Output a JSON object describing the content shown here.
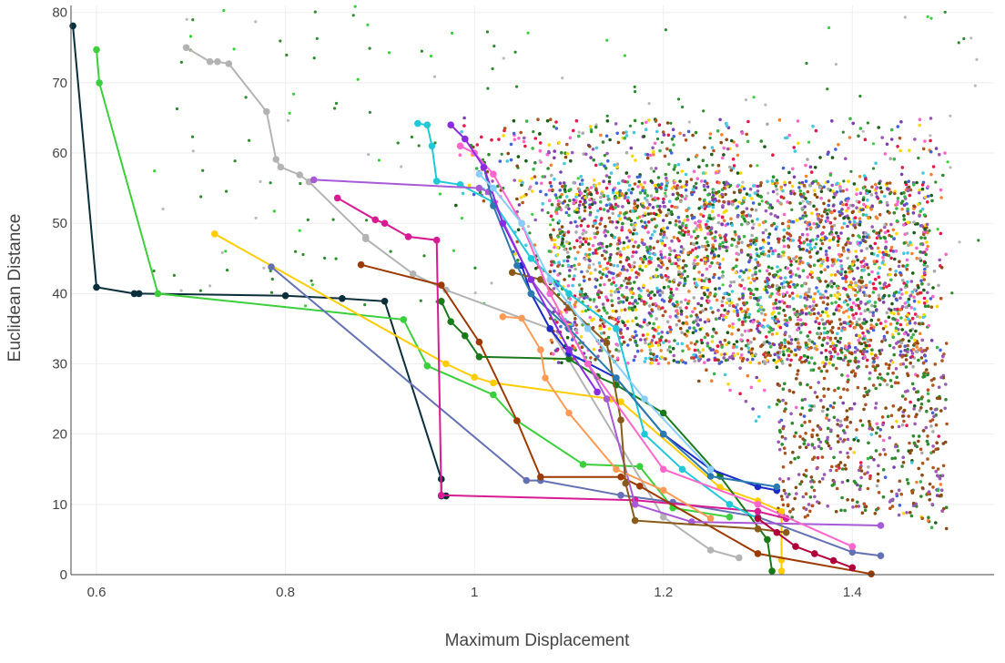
{
  "chart_data": {
    "type": "scatter",
    "title": "",
    "xlabel": "Maximum Displacement",
    "ylabel": "Euclidean Distance",
    "xlim": [
      0.573,
      1.55
    ],
    "ylim": [
      0,
      81
    ],
    "x_ticks": [
      0.6,
      0.8,
      1,
      1.2,
      1.4
    ],
    "x_tick_labels": [
      "0.6",
      "0.8",
      "1",
      "1.2",
      "1.4"
    ],
    "y_ticks": [
      0,
      10,
      20,
      30,
      40,
      50,
      60,
      70,
      80
    ],
    "y_tick_labels": [
      "0",
      "10",
      "20",
      "30",
      "40",
      "50",
      "60",
      "70",
      "80"
    ],
    "grid": true,
    "legend": "none",
    "gridline_color": "#eeeeee",
    "axis_line_color": "#444444",
    "series": [
      {
        "color": "#0b2e3b",
        "x": [
          0.575,
          0.6,
          0.64,
          0.645,
          0.8,
          0.86,
          0.905,
          0.965,
          0.965,
          0.97
        ],
        "y": [
          78.1,
          40.9,
          40.0,
          40.0,
          39.7,
          39.3,
          38.9,
          13.6,
          11.2,
          11.2
        ]
      },
      {
        "color": "#3ccf3c",
        "x": [
          0.6,
          0.603,
          0.665,
          0.925,
          0.95,
          1.02,
          1.045,
          1.115,
          1.175,
          1.21,
          1.27
        ],
        "y": [
          74.7,
          70.0,
          40.0,
          36.3,
          29.7,
          25.6,
          21.9,
          15.7,
          15.4,
          9.5,
          8.2
        ]
      },
      {
        "color": "#b3b3b3",
        "x": [
          0.695,
          0.72,
          0.728,
          0.74,
          0.78,
          0.79,
          0.795,
          0.815,
          0.825,
          0.885,
          0.885,
          0.935,
          0.97,
          1.08,
          1.2,
          1.25,
          1.28
        ],
        "y": [
          75.0,
          73.0,
          73.0,
          72.7,
          65.9,
          59.1,
          58.0,
          56.9,
          55.9,
          48.0,
          47.8,
          42.8,
          40.5,
          35.0,
          8.2,
          3.5,
          2.4
        ]
      },
      {
        "color": "#ffcc00",
        "x": [
          0.725,
          0.97,
          1.0,
          1.02,
          1.145,
          1.155,
          1.26,
          1.3,
          1.325,
          1.325,
          1.325
        ],
        "y": [
          48.5,
          30.0,
          28.1,
          27.3,
          25.0,
          24.6,
          12.4,
          10.5,
          9.0,
          2.1,
          0.5
        ]
      },
      {
        "color": "#6470b4",
        "x": [
          0.785,
          1.055,
          1.07,
          1.155,
          1.21,
          1.3,
          1.4,
          1.43
        ],
        "y": [
          43.8,
          13.4,
          13.4,
          11.3,
          10.3,
          8.2,
          3.2,
          2.7
        ]
      },
      {
        "color": "#d81b93",
        "x": [
          0.855,
          0.895,
          0.905,
          0.93,
          0.96,
          0.965,
          1.17,
          1.3,
          1.33
        ],
        "y": [
          53.6,
          50.5,
          50.0,
          48.1,
          47.6,
          11.3,
          10.6,
          9.0,
          8.0
        ]
      },
      {
        "color": "#9c3a00",
        "x": [
          0.88,
          0.965,
          1.005,
          1.045,
          1.07,
          1.155,
          1.175,
          1.3,
          1.42
        ],
        "y": [
          44.1,
          41.2,
          33.1,
          21.9,
          13.9,
          13.9,
          12.6,
          3.0,
          0.1
        ]
      },
      {
        "color": "#1a7a1a",
        "x": [
          0.965,
          0.975,
          0.99,
          1.005,
          1.1,
          1.13,
          1.15,
          1.2,
          1.26,
          1.31,
          1.315
        ],
        "y": [
          38.9,
          36.0,
          34.0,
          31.0,
          30.7,
          28.2,
          27.0,
          23.0,
          14.0,
          5.0,
          0.5
        ]
      },
      {
        "color": "#21c8d8",
        "x": [
          0.94,
          0.95,
          0.955,
          0.96,
          0.985,
          1.02,
          1.06,
          1.1,
          1.15,
          1.18,
          1.22,
          1.27,
          1.3
        ],
        "y": [
          64.2,
          64.0,
          61.0,
          56.0,
          55.5,
          53.0,
          45.0,
          40.0,
          35.0,
          20.0,
          15.0,
          10.0,
          8.0
        ]
      },
      {
        "color": "#a85ad6",
        "x": [
          0.83,
          1.005,
          1.015,
          1.06,
          1.1,
          1.14,
          1.17,
          1.23,
          1.43
        ],
        "y": [
          56.2,
          55.0,
          54.5,
          42.0,
          35.0,
          25.0,
          10.0,
          7.5,
          7.0
        ]
      },
      {
        "color": "#1a2bc8",
        "x": [
          1.05,
          1.06,
          1.08,
          1.1,
          1.15,
          1.2,
          1.25,
          1.3,
          1.32
        ],
        "y": [
          44.0,
          40.0,
          35.0,
          31.5,
          28.0,
          20.0,
          15.0,
          12.5,
          12.0
        ]
      },
      {
        "color": "#ff9a55",
        "x": [
          1.03,
          1.05,
          1.07,
          1.075,
          1.1,
          1.15,
          1.2,
          1.25
        ],
        "y": [
          36.7,
          36.5,
          32.0,
          28.0,
          23.0,
          15.0,
          12.0,
          8.0
        ]
      },
      {
        "color": "#8a5a1a",
        "x": [
          1.04,
          1.07,
          1.1,
          1.14,
          1.155,
          1.16,
          1.17,
          1.3,
          1.33
        ],
        "y": [
          43.0,
          42.0,
          38.0,
          33.0,
          22.0,
          13.0,
          7.7,
          6.5,
          6.0
        ]
      },
      {
        "color": "#2a7ab0",
        "x": [
          1.01,
          1.02,
          1.045,
          1.06,
          1.1,
          1.15,
          1.2,
          1.25,
          1.32
        ],
        "y": [
          58.0,
          52.5,
          44.0,
          40.0,
          35.0,
          28.0,
          20.0,
          14.0,
          12.5
        ]
      },
      {
        "color": "#ff66cc",
        "x": [
          0.985,
          1.0,
          1.02,
          1.05,
          1.08,
          1.12,
          1.2,
          1.3,
          1.4
        ],
        "y": [
          61.0,
          60.0,
          57.0,
          50.0,
          40.0,
          30.0,
          15.0,
          10.0,
          4.0
        ]
      },
      {
        "color": "#8a2be2",
        "x": [
          0.975,
          0.99,
          1.01,
          1.03,
          1.06,
          1.1,
          1.13
        ],
        "y": [
          64.0,
          62.0,
          58.0,
          50.0,
          42.0,
          32.0,
          26.0
        ]
      },
      {
        "color": "#87cefa",
        "x": [
          1.005,
          1.02,
          1.05,
          1.08,
          1.12,
          1.18,
          1.25
        ],
        "y": [
          57.0,
          55.0,
          50.0,
          42.0,
          35.0,
          25.0,
          15.0
        ]
      },
      {
        "color": "#b0003a",
        "x": [
          1.3,
          1.32,
          1.34,
          1.36,
          1.38,
          1.4
        ],
        "y": [
          8.0,
          6.0,
          4.0,
          3.0,
          2.0,
          1.0
        ]
      }
    ]
  }
}
